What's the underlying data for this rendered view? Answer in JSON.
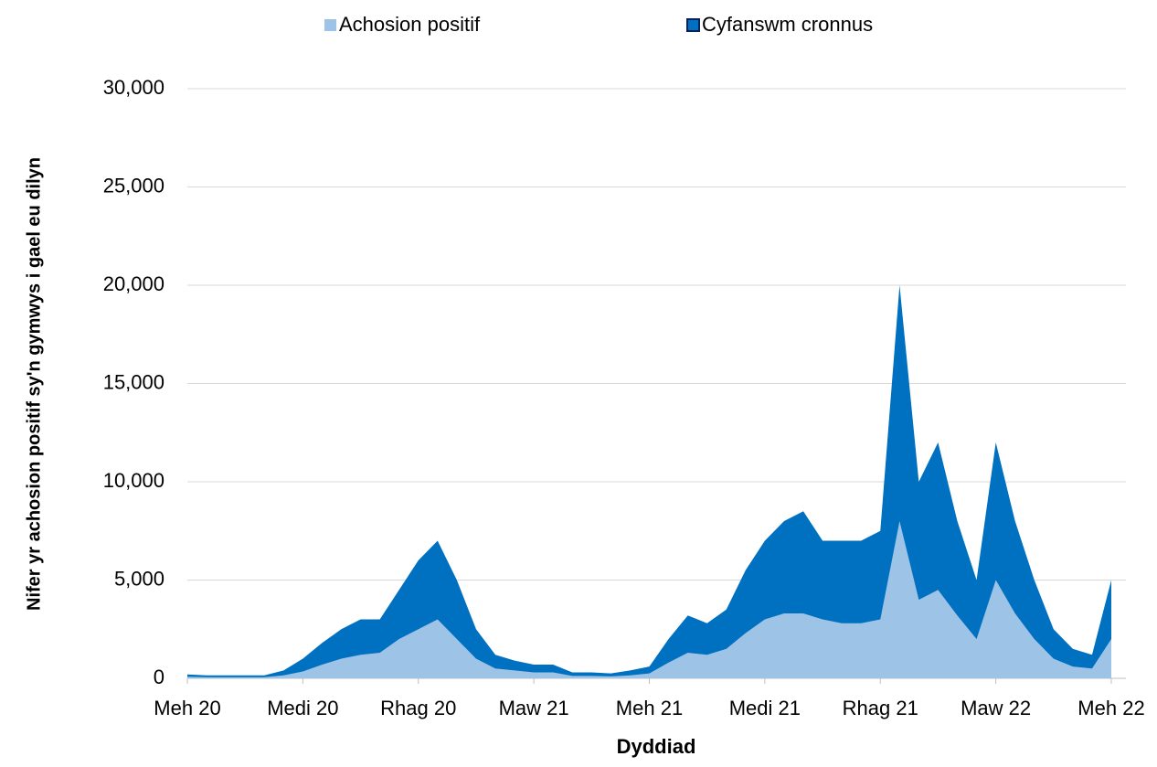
{
  "chart_data": {
    "type": "area",
    "y_label": "Nifer yr achosion positif sy'n gymwys i gael eu dilyn",
    "x_label": "Dyddiad",
    "categories": [
      "Meh 20",
      null,
      null,
      null,
      null,
      null,
      "Medi 20",
      null,
      null,
      null,
      null,
      null,
      "Rhag 20",
      null,
      null,
      null,
      null,
      null,
      "Maw 21",
      null,
      null,
      null,
      null,
      null,
      "Meh 21",
      null,
      null,
      null,
      null,
      null,
      "Medi 21",
      null,
      null,
      null,
      null,
      null,
      "Rhag 21",
      null,
      null,
      null,
      null,
      null,
      "Maw 22",
      null,
      null,
      null,
      null,
      null,
      "Meh 22"
    ],
    "series": [
      {
        "name": "Cyfanswm cronnus",
        "color": "#0070c0",
        "values": [
          200,
          150,
          150,
          150,
          150,
          400,
          1000,
          1800,
          2500,
          3000,
          3000,
          4500,
          6000,
          7000,
          5000,
          2500,
          1200,
          900,
          700,
          700,
          300,
          300,
          250,
          400,
          600,
          2000,
          3200,
          2800,
          3500,
          5500,
          7000,
          8000,
          8500,
          7000,
          7000,
          7000,
          7500,
          20000,
          10000,
          12000,
          8000,
          5000,
          12000,
          8000,
          5000,
          2500,
          1500,
          1200,
          5000
        ]
      },
      {
        "name": "Achosion positif",
        "color": "#9dc3e6",
        "values": [
          80,
          60,
          60,
          60,
          60,
          150,
          350,
          700,
          1000,
          1200,
          1300,
          2000,
          2500,
          3000,
          2000,
          1000,
          500,
          400,
          300,
          300,
          120,
          120,
          100,
          150,
          250,
          800,
          1300,
          1200,
          1500,
          2300,
          3000,
          3300,
          3300,
          3000,
          2800,
          2800,
          3000,
          8000,
          4000,
          4500,
          3200,
          2000,
          5000,
          3300,
          2000,
          1000,
          600,
          500,
          2000
        ]
      }
    ],
    "ylim": [
      0,
      30000
    ],
    "yticks": [
      0,
      {
        "value": 5000,
        "label": "5,000"
      },
      {
        "value": 10000,
        "label": "10,000"
      },
      {
        "value": 15000,
        "label": "15,000"
      },
      {
        "value": 20000,
        "label": "20,000"
      },
      {
        "value": 25000,
        "label": "25,000"
      },
      {
        "value": 30000,
        "label": "30,000"
      }
    ],
    "grid": true
  }
}
